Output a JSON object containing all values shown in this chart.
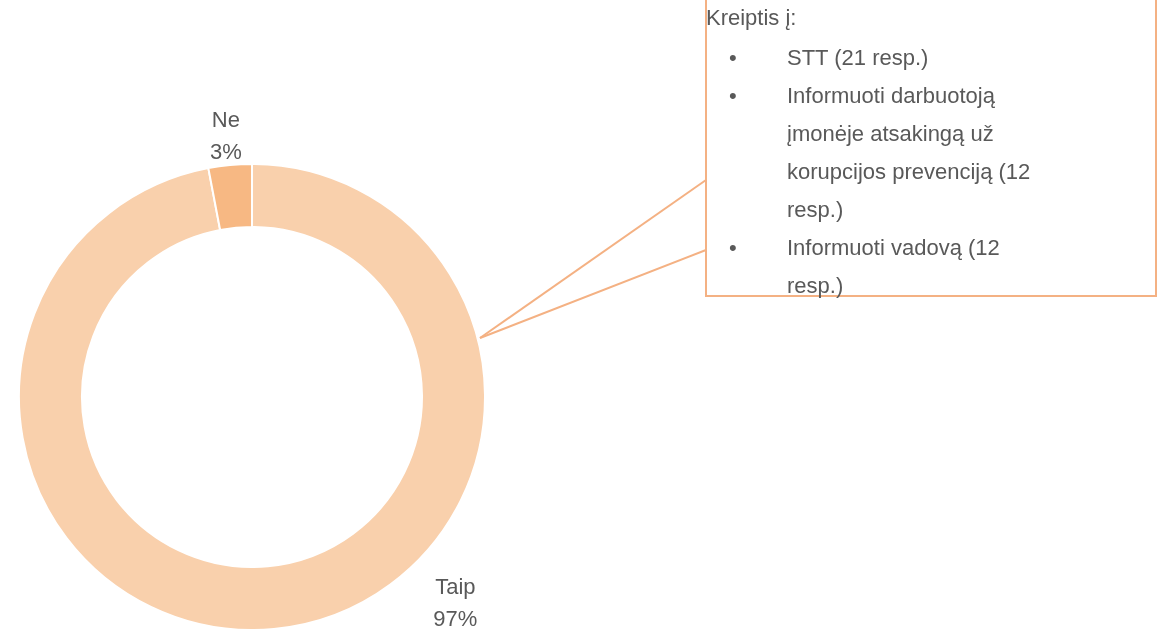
{
  "chart_data": {
    "type": "donut",
    "categories": [
      "Taip",
      "Ne"
    ],
    "values": [
      97,
      3
    ],
    "colors": [
      "#f9d0ac",
      "#f7b883"
    ],
    "value_labels": [
      "97%",
      "3%"
    ],
    "annotations": [
      "Kreiptis į:",
      "• STT (21 resp.)",
      "• Informuoti darbuotoją įmonėje atsakingą už korupcijos prevenciją (12 resp.)",
      "• Informuoti vadovą  (12 resp.)"
    ]
  }
}
